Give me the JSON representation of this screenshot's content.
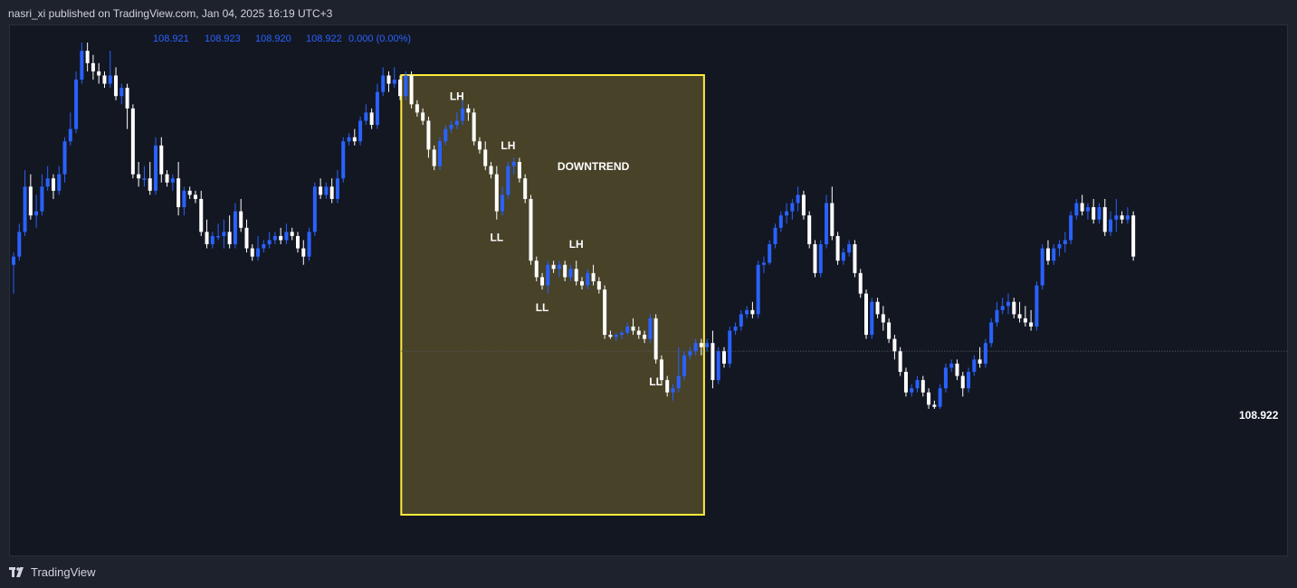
{
  "header": {
    "published_text": "nasri_xi published on TradingView.com, Jan 04, 2025 16:19 UTC+3"
  },
  "ohlc_readout": {
    "open": "108.921",
    "high": "108.923",
    "low": "108.920",
    "close": "108.922",
    "change": "0.000 (0.00%)",
    "color": "#2962ff"
  },
  "price_label": "108.922",
  "footer": {
    "brand": "TradingView"
  },
  "colors": {
    "background": "#131722",
    "bull_candle": "#2962ff",
    "bear_candle": "#ffffff",
    "box_fill": "#4a4429",
    "box_border": "#ffeb3b",
    "label_text": "#ffffff"
  },
  "chart_data": {
    "type": "candlestick",
    "title": "",
    "xlabel": "",
    "ylabel": "",
    "ylim": [
      0,
      100
    ],
    "annotation_box": {
      "label": "DOWNTREND",
      "start_index": 69,
      "end_index": 121
    },
    "labels": [
      {
        "text": "LH",
        "index": 78,
        "pos": "above"
      },
      {
        "text": "LH",
        "index": 87,
        "pos": "above"
      },
      {
        "text": "LL",
        "index": 85,
        "pos": "below"
      },
      {
        "text": "LH",
        "index": 99,
        "pos": "above"
      },
      {
        "text": "LL",
        "index": 93,
        "pos": "below"
      },
      {
        "text": "LL",
        "index": 113,
        "pos": "below"
      }
    ],
    "current_price_level": 34.0,
    "candles": [
      {
        "o": 55,
        "h": 58,
        "l": 48,
        "c": 57
      },
      {
        "o": 57,
        "h": 65,
        "l": 56,
        "c": 63
      },
      {
        "o": 63,
        "h": 78,
        "l": 62,
        "c": 74
      },
      {
        "o": 74,
        "h": 77,
        "l": 66,
        "c": 67
      },
      {
        "o": 67,
        "h": 72,
        "l": 64,
        "c": 68
      },
      {
        "o": 68,
        "h": 77,
        "l": 67,
        "c": 74
      },
      {
        "o": 74,
        "h": 79,
        "l": 73,
        "c": 76
      },
      {
        "o": 76,
        "h": 77,
        "l": 71,
        "c": 73
      },
      {
        "o": 73,
        "h": 79,
        "l": 72,
        "c": 77
      },
      {
        "o": 77,
        "h": 86,
        "l": 75,
        "c": 85
      },
      {
        "o": 85,
        "h": 92,
        "l": 84,
        "c": 88
      },
      {
        "o": 88,
        "h": 102,
        "l": 87,
        "c": 100
      },
      {
        "o": 100,
        "h": 109,
        "l": 99,
        "c": 107
      },
      {
        "o": 107,
        "h": 109,
        "l": 102,
        "c": 104
      },
      {
        "o": 104,
        "h": 106,
        "l": 100,
        "c": 102
      },
      {
        "o": 102,
        "h": 104,
        "l": 99,
        "c": 101
      },
      {
        "o": 101,
        "h": 102,
        "l": 98,
        "c": 99
      },
      {
        "o": 99,
        "h": 107,
        "l": 98,
        "c": 101
      },
      {
        "o": 101,
        "h": 103,
        "l": 95,
        "c": 96
      },
      {
        "o": 96,
        "h": 99,
        "l": 94,
        "c": 98
      },
      {
        "o": 98,
        "h": 99,
        "l": 88,
        "c": 93
      },
      {
        "o": 93,
        "h": 94,
        "l": 76,
        "c": 77
      },
      {
        "o": 77,
        "h": 80,
        "l": 74,
        "c": 76
      },
      {
        "o": 76,
        "h": 79,
        "l": 74,
        "c": 76
      },
      {
        "o": 76,
        "h": 80,
        "l": 72,
        "c": 73
      },
      {
        "o": 73,
        "h": 86,
        "l": 72,
        "c": 84
      },
      {
        "o": 84,
        "h": 86,
        "l": 75,
        "c": 77
      },
      {
        "o": 77,
        "h": 78,
        "l": 74,
        "c": 75
      },
      {
        "o": 75,
        "h": 77,
        "l": 73,
        "c": 76
      },
      {
        "o": 76,
        "h": 80,
        "l": 67,
        "c": 69
      },
      {
        "o": 69,
        "h": 74,
        "l": 67,
        "c": 73
      },
      {
        "o": 73,
        "h": 74,
        "l": 71,
        "c": 72
      },
      {
        "o": 72,
        "h": 73,
        "l": 70,
        "c": 71
      },
      {
        "o": 71,
        "h": 73,
        "l": 62,
        "c": 63
      },
      {
        "o": 63,
        "h": 66,
        "l": 59,
        "c": 60
      },
      {
        "o": 60,
        "h": 63,
        "l": 59,
        "c": 62
      },
      {
        "o": 62,
        "h": 65,
        "l": 61,
        "c": 62
      },
      {
        "o": 62,
        "h": 66,
        "l": 59,
        "c": 63
      },
      {
        "o": 63,
        "h": 67,
        "l": 59,
        "c": 60
      },
      {
        "o": 60,
        "h": 70,
        "l": 59,
        "c": 68
      },
      {
        "o": 68,
        "h": 71,
        "l": 63,
        "c": 64
      },
      {
        "o": 64,
        "h": 66,
        "l": 58,
        "c": 59
      },
      {
        "o": 59,
        "h": 60,
        "l": 56,
        "c": 57
      },
      {
        "o": 57,
        "h": 62,
        "l": 56,
        "c": 59
      },
      {
        "o": 59,
        "h": 61,
        "l": 58,
        "c": 60
      },
      {
        "o": 60,
        "h": 63,
        "l": 59,
        "c": 61
      },
      {
        "o": 61,
        "h": 63,
        "l": 60,
        "c": 62
      },
      {
        "o": 62,
        "h": 64,
        "l": 60,
        "c": 61
      },
      {
        "o": 61,
        "h": 65,
        "l": 60,
        "c": 63
      },
      {
        "o": 63,
        "h": 64,
        "l": 61,
        "c": 62
      },
      {
        "o": 62,
        "h": 63,
        "l": 58,
        "c": 59
      },
      {
        "o": 59,
        "h": 61,
        "l": 55,
        "c": 57
      },
      {
        "o": 57,
        "h": 64,
        "l": 56,
        "c": 63
      },
      {
        "o": 63,
        "h": 75,
        "l": 62,
        "c": 74
      },
      {
        "o": 74,
        "h": 76,
        "l": 71,
        "c": 72
      },
      {
        "o": 72,
        "h": 75,
        "l": 71,
        "c": 74
      },
      {
        "o": 74,
        "h": 76,
        "l": 70,
        "c": 71
      },
      {
        "o": 71,
        "h": 78,
        "l": 70,
        "c": 76
      },
      {
        "o": 76,
        "h": 86,
        "l": 75,
        "c": 85
      },
      {
        "o": 85,
        "h": 87,
        "l": 84,
        "c": 86
      },
      {
        "o": 86,
        "h": 88,
        "l": 84,
        "c": 85
      },
      {
        "o": 85,
        "h": 91,
        "l": 84,
        "c": 90
      },
      {
        "o": 90,
        "h": 94,
        "l": 89,
        "c": 92
      },
      {
        "o": 92,
        "h": 93,
        "l": 88,
        "c": 89
      },
      {
        "o": 89,
        "h": 99,
        "l": 88,
        "c": 97
      },
      {
        "o": 97,
        "h": 103,
        "l": 96,
        "c": 101
      },
      {
        "o": 101,
        "h": 102,
        "l": 97,
        "c": 99
      },
      {
        "o": 99,
        "h": 103,
        "l": 98,
        "c": 100
      },
      {
        "o": 100,
        "h": 101,
        "l": 95,
        "c": 96
      },
      {
        "o": 96,
        "h": 102,
        "l": 95,
        "c": 101
      },
      {
        "o": 101,
        "h": 102,
        "l": 93,
        "c": 94
      },
      {
        "o": 94,
        "h": 95,
        "l": 91,
        "c": 92
      },
      {
        "o": 92,
        "h": 93,
        "l": 89,
        "c": 90
      },
      {
        "o": 90,
        "h": 91,
        "l": 81,
        "c": 83
      },
      {
        "o": 83,
        "h": 84,
        "l": 78,
        "c": 79
      },
      {
        "o": 79,
        "h": 86,
        "l": 78,
        "c": 85
      },
      {
        "o": 85,
        "h": 89,
        "l": 84,
        "c": 88
      },
      {
        "o": 88,
        "h": 90,
        "l": 87,
        "c": 89
      },
      {
        "o": 89,
        "h": 92,
        "l": 88,
        "c": 90
      },
      {
        "o": 90,
        "h": 95,
        "l": 89,
        "c": 93
      },
      {
        "o": 93,
        "h": 94,
        "l": 90,
        "c": 92
      },
      {
        "o": 92,
        "h": 93,
        "l": 84,
        "c": 85
      },
      {
        "o": 85,
        "h": 86,
        "l": 82,
        "c": 83
      },
      {
        "o": 83,
        "h": 85,
        "l": 78,
        "c": 79
      },
      {
        "o": 79,
        "h": 80,
        "l": 76,
        "c": 77
      },
      {
        "o": 77,
        "h": 79,
        "l": 66,
        "c": 68
      },
      {
        "o": 68,
        "h": 74,
        "l": 67,
        "c": 72
      },
      {
        "o": 72,
        "h": 80,
        "l": 71,
        "c": 79
      },
      {
        "o": 79,
        "h": 81,
        "l": 77,
        "c": 80
      },
      {
        "o": 80,
        "h": 81,
        "l": 75,
        "c": 76
      },
      {
        "o": 76,
        "h": 77,
        "l": 70,
        "c": 71
      },
      {
        "o": 71,
        "h": 72,
        "l": 55,
        "c": 56
      },
      {
        "o": 56,
        "h": 57,
        "l": 51,
        "c": 52
      },
      {
        "o": 52,
        "h": 53,
        "l": 49,
        "c": 50
      },
      {
        "o": 50,
        "h": 56,
        "l": 48,
        "c": 55
      },
      {
        "o": 55,
        "h": 56,
        "l": 53,
        "c": 54
      },
      {
        "o": 54,
        "h": 56,
        "l": 52,
        "c": 55
      },
      {
        "o": 55,
        "h": 56,
        "l": 51,
        "c": 52
      },
      {
        "o": 52,
        "h": 55,
        "l": 51,
        "c": 54
      },
      {
        "o": 54,
        "h": 56,
        "l": 50,
        "c": 51
      },
      {
        "o": 51,
        "h": 52,
        "l": 49,
        "c": 50
      },
      {
        "o": 50,
        "h": 54,
        "l": 49,
        "c": 53
      },
      {
        "o": 53,
        "h": 55,
        "l": 50,
        "c": 51
      },
      {
        "o": 51,
        "h": 52,
        "l": 48,
        "c": 49
      },
      {
        "o": 49,
        "h": 50,
        "l": 37,
        "c": 38
      },
      {
        "o": 38,
        "h": 39,
        "l": 37,
        "c": 37.5
      },
      {
        "o": 37.5,
        "h": 38.5,
        "l": 36.5,
        "c": 38
      },
      {
        "o": 38,
        "h": 39,
        "l": 37,
        "c": 38.5
      },
      {
        "o": 38.5,
        "h": 41,
        "l": 38,
        "c": 40
      },
      {
        "o": 40,
        "h": 42,
        "l": 38,
        "c": 39
      },
      {
        "o": 39,
        "h": 40,
        "l": 37,
        "c": 38
      },
      {
        "o": 38,
        "h": 39,
        "l": 36,
        "c": 37
      },
      {
        "o": 37,
        "h": 43,
        "l": 36,
        "c": 42
      },
      {
        "o": 42,
        "h": 43,
        "l": 31,
        "c": 32
      },
      {
        "o": 32,
        "h": 33,
        "l": 26,
        "c": 27
      },
      {
        "o": 27,
        "h": 28,
        "l": 23,
        "c": 24
      },
      {
        "o": 24,
        "h": 26,
        "l": 22,
        "c": 25
      },
      {
        "o": 25,
        "h": 35,
        "l": 24,
        "c": 28
      },
      {
        "o": 28,
        "h": 34,
        "l": 27,
        "c": 33
      },
      {
        "o": 33,
        "h": 35,
        "l": 32,
        "c": 34
      },
      {
        "o": 34,
        "h": 37,
        "l": 33,
        "c": 36
      },
      {
        "o": 36,
        "h": 37,
        "l": 33,
        "c": 35
      },
      {
        "o": 35,
        "h": 37,
        "l": 34,
        "c": 36
      },
      {
        "o": 36,
        "h": 39,
        "l": 25,
        "c": 27
      },
      {
        "o": 27,
        "h": 35,
        "l": 26,
        "c": 34
      },
      {
        "o": 34,
        "h": 35,
        "l": 30,
        "c": 31
      },
      {
        "o": 31,
        "h": 40,
        "l": 30,
        "c": 39
      },
      {
        "o": 39,
        "h": 41,
        "l": 38,
        "c": 40
      },
      {
        "o": 40,
        "h": 44,
        "l": 39,
        "c": 43
      },
      {
        "o": 43,
        "h": 45,
        "l": 42,
        "c": 44
      },
      {
        "o": 44,
        "h": 46,
        "l": 42,
        "c": 43
      },
      {
        "o": 43,
        "h": 56,
        "l": 42,
        "c": 55
      },
      {
        "o": 55,
        "h": 57,
        "l": 53,
        "c": 55.5
      },
      {
        "o": 55.5,
        "h": 61,
        "l": 55,
        "c": 60
      },
      {
        "o": 60,
        "h": 65,
        "l": 59,
        "c": 64
      },
      {
        "o": 64,
        "h": 68,
        "l": 63,
        "c": 67
      },
      {
        "o": 67,
        "h": 70,
        "l": 65,
        "c": 68
      },
      {
        "o": 68,
        "h": 71,
        "l": 66,
        "c": 70
      },
      {
        "o": 70,
        "h": 74,
        "l": 68,
        "c": 72
      },
      {
        "o": 72,
        "h": 73,
        "l": 66,
        "c": 67
      },
      {
        "o": 67,
        "h": 68,
        "l": 59,
        "c": 60
      },
      {
        "o": 60,
        "h": 61,
        "l": 52,
        "c": 53
      },
      {
        "o": 53,
        "h": 61,
        "l": 52,
        "c": 60
      },
      {
        "o": 60,
        "h": 72,
        "l": 59,
        "c": 70
      },
      {
        "o": 70,
        "h": 74,
        "l": 61,
        "c": 62
      },
      {
        "o": 62,
        "h": 63,
        "l": 55,
        "c": 56
      },
      {
        "o": 56,
        "h": 59,
        "l": 55,
        "c": 58
      },
      {
        "o": 58,
        "h": 61,
        "l": 57,
        "c": 60
      },
      {
        "o": 60,
        "h": 61,
        "l": 52,
        "c": 53
      },
      {
        "o": 53,
        "h": 54,
        "l": 47,
        "c": 48
      },
      {
        "o": 48,
        "h": 49,
        "l": 37,
        "c": 38
      },
      {
        "o": 38,
        "h": 47,
        "l": 37,
        "c": 46
      },
      {
        "o": 46,
        "h": 47,
        "l": 42,
        "c": 43
      },
      {
        "o": 43,
        "h": 45,
        "l": 39,
        "c": 41
      },
      {
        "o": 41,
        "h": 42,
        "l": 36,
        "c": 37
      },
      {
        "o": 37,
        "h": 38,
        "l": 32,
        "c": 34
      },
      {
        "o": 34,
        "h": 35,
        "l": 28,
        "c": 29
      },
      {
        "o": 29,
        "h": 30,
        "l": 23,
        "c": 24
      },
      {
        "o": 24,
        "h": 26,
        "l": 23,
        "c": 25
      },
      {
        "o": 25,
        "h": 28,
        "l": 24,
        "c": 27
      },
      {
        "o": 27,
        "h": 28,
        "l": 23,
        "c": 24
      },
      {
        "o": 24,
        "h": 25,
        "l": 20,
        "c": 21
      },
      {
        "o": 21,
        "h": 22,
        "l": 20,
        "c": 20.5
      },
      {
        "o": 20.5,
        "h": 26,
        "l": 20,
        "c": 25
      },
      {
        "o": 25,
        "h": 31,
        "l": 24,
        "c": 30
      },
      {
        "o": 30,
        "h": 32,
        "l": 29,
        "c": 31
      },
      {
        "o": 31,
        "h": 32,
        "l": 27,
        "c": 28
      },
      {
        "o": 28,
        "h": 29,
        "l": 23,
        "c": 25
      },
      {
        "o": 25,
        "h": 30,
        "l": 24,
        "c": 29
      },
      {
        "o": 29,
        "h": 33,
        "l": 28,
        "c": 32
      },
      {
        "o": 32,
        "h": 35,
        "l": 30,
        "c": 31
      },
      {
        "o": 31,
        "h": 37,
        "l": 30,
        "c": 36
      },
      {
        "o": 36,
        "h": 42,
        "l": 35,
        "c": 41
      },
      {
        "o": 41,
        "h": 46,
        "l": 40,
        "c": 44
      },
      {
        "o": 44,
        "h": 47,
        "l": 43,
        "c": 45
      },
      {
        "o": 45,
        "h": 48,
        "l": 43,
        "c": 46
      },
      {
        "o": 46,
        "h": 47,
        "l": 42,
        "c": 43
      },
      {
        "o": 43,
        "h": 46,
        "l": 41,
        "c": 42
      },
      {
        "o": 42,
        "h": 45,
        "l": 40,
        "c": 41
      },
      {
        "o": 41,
        "h": 44,
        "l": 39,
        "c": 40
      },
      {
        "o": 40,
        "h": 51,
        "l": 39,
        "c": 50
      },
      {
        "o": 50,
        "h": 60,
        "l": 49,
        "c": 59
      },
      {
        "o": 59,
        "h": 61,
        "l": 55,
        "c": 56
      },
      {
        "o": 56,
        "h": 60,
        "l": 55,
        "c": 59
      },
      {
        "o": 59,
        "h": 61,
        "l": 57,
        "c": 60
      },
      {
        "o": 60,
        "h": 63,
        "l": 58,
        "c": 61
      },
      {
        "o": 61,
        "h": 68,
        "l": 60,
        "c": 67
      },
      {
        "o": 67,
        "h": 71,
        "l": 66,
        "c": 70
      },
      {
        "o": 70,
        "h": 72,
        "l": 67,
        "c": 68
      },
      {
        "o": 68,
        "h": 70,
        "l": 66,
        "c": 69
      },
      {
        "o": 69,
        "h": 71,
        "l": 65,
        "c": 66
      },
      {
        "o": 66,
        "h": 70,
        "l": 65,
        "c": 69
      },
      {
        "o": 69,
        "h": 71,
        "l": 62,
        "c": 63
      },
      {
        "o": 63,
        "h": 68,
        "l": 62,
        "c": 66
      },
      {
        "o": 66,
        "h": 71,
        "l": 63,
        "c": 67
      },
      {
        "o": 67,
        "h": 68,
        "l": 65,
        "c": 66
      },
      {
        "o": 66,
        "h": 69,
        "l": 65,
        "c": 67
      },
      {
        "o": 67,
        "h": 68,
        "l": 56,
        "c": 57
      }
    ]
  }
}
